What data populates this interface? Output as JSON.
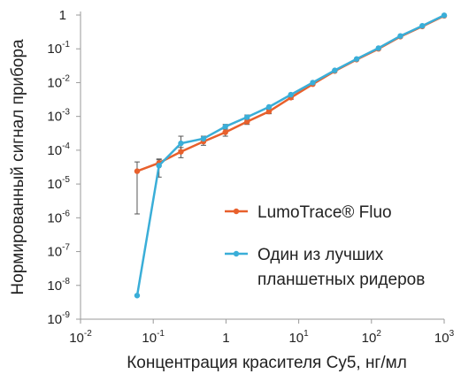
{
  "chart_data": {
    "type": "line",
    "x_scale": "log",
    "y_scale": "log",
    "xlim": [
      0.01,
      1000
    ],
    "ylim": [
      1e-09,
      1
    ],
    "xlabel": "Концентрация красителя Cy5, нг/мл",
    "ylabel": "Нормированный сигнал прибора",
    "x_ticks": [
      {
        "base": "10",
        "exp": "-2"
      },
      {
        "base": "10",
        "exp": "-1"
      },
      {
        "base": "1",
        "exp": ""
      },
      {
        "base": "10",
        "exp": "1"
      },
      {
        "base": "10",
        "exp": "2"
      },
      {
        "base": "10",
        "exp": "3"
      }
    ],
    "y_ticks": [
      {
        "base": "1",
        "exp": ""
      },
      {
        "base": "10",
        "exp": "-1"
      },
      {
        "base": "10",
        "exp": "-2"
      },
      {
        "base": "10",
        "exp": "-3"
      },
      {
        "base": "10",
        "exp": "-4"
      },
      {
        "base": "10",
        "exp": "-5"
      },
      {
        "base": "10",
        "exp": "-6"
      },
      {
        "base": "10",
        "exp": "-7"
      },
      {
        "base": "10",
        "exp": "-8"
      },
      {
        "base": "10",
        "exp": "-9"
      }
    ],
    "legend_position": "center-right",
    "series": [
      {
        "name": "LumoTrace® Fluo",
        "color": "#e8602c",
        "points": [
          {
            "x": 0.06,
            "y": 2.4e-05,
            "err_lo": 1.3e-06,
            "err_hi": 4.5e-05
          },
          {
            "x": 0.12,
            "y": 4.2e-05,
            "err_lo": 3.4e-05,
            "err_hi": 5.2e-05
          },
          {
            "x": 0.24,
            "y": 9e-05,
            "err_lo": 6e-05,
            "err_hi": 0.00012
          },
          {
            "x": 0.49,
            "y": 0.00018,
            "err_lo": 0.00014,
            "err_hi": 0.00022
          },
          {
            "x": 0.98,
            "y": 0.00034,
            "err_lo": 0.00026,
            "err_hi": 0.00042
          },
          {
            "x": 1.95,
            "y": 0.0007,
            "err_lo": 0.00058,
            "err_hi": 0.00082
          },
          {
            "x": 3.9,
            "y": 0.0014,
            "err_lo": 0.0012,
            "err_hi": 0.0016
          },
          {
            "x": 7.8,
            "y": 0.0036,
            "err_lo": 0.0032,
            "err_hi": 0.004
          },
          {
            "x": 15.6,
            "y": 0.009
          },
          {
            "x": 31.3,
            "y": 0.022
          },
          {
            "x": 62.5,
            "y": 0.048
          },
          {
            "x": 125,
            "y": 0.1
          },
          {
            "x": 250,
            "y": 0.23
          },
          {
            "x": 500,
            "y": 0.46
          },
          {
            "x": 1000,
            "y": 0.95
          }
        ]
      },
      {
        "name": "Один из лучших планшетных ридеров",
        "name_lines": [
          "Один из лучших",
          "планшетных ридеров"
        ],
        "color": "#3aaed8",
        "points": [
          {
            "x": 0.06,
            "y": 5e-09
          },
          {
            "x": 0.12,
            "y": 3.5e-05,
            "err_lo": 1.6e-05,
            "err_hi": 5.5e-05
          },
          {
            "x": 0.24,
            "y": 0.00016,
            "err_lo": 0.0001,
            "err_hi": 0.00026
          },
          {
            "x": 0.49,
            "y": 0.00022,
            "err_lo": 0.00018,
            "err_hi": 0.00026
          },
          {
            "x": 0.98,
            "y": 0.0005,
            "err_lo": 0.00042,
            "err_hi": 0.00058
          },
          {
            "x": 1.95,
            "y": 0.00095,
            "err_lo": 0.00082,
            "err_hi": 0.0011
          },
          {
            "x": 3.9,
            "y": 0.0019
          },
          {
            "x": 7.8,
            "y": 0.0044
          },
          {
            "x": 15.6,
            "y": 0.01
          },
          {
            "x": 31.3,
            "y": 0.023
          },
          {
            "x": 62.5,
            "y": 0.05
          },
          {
            "x": 125,
            "y": 0.105
          },
          {
            "x": 250,
            "y": 0.24
          },
          {
            "x": 500,
            "y": 0.48
          },
          {
            "x": 1000,
            "y": 0.98
          }
        ]
      }
    ]
  }
}
